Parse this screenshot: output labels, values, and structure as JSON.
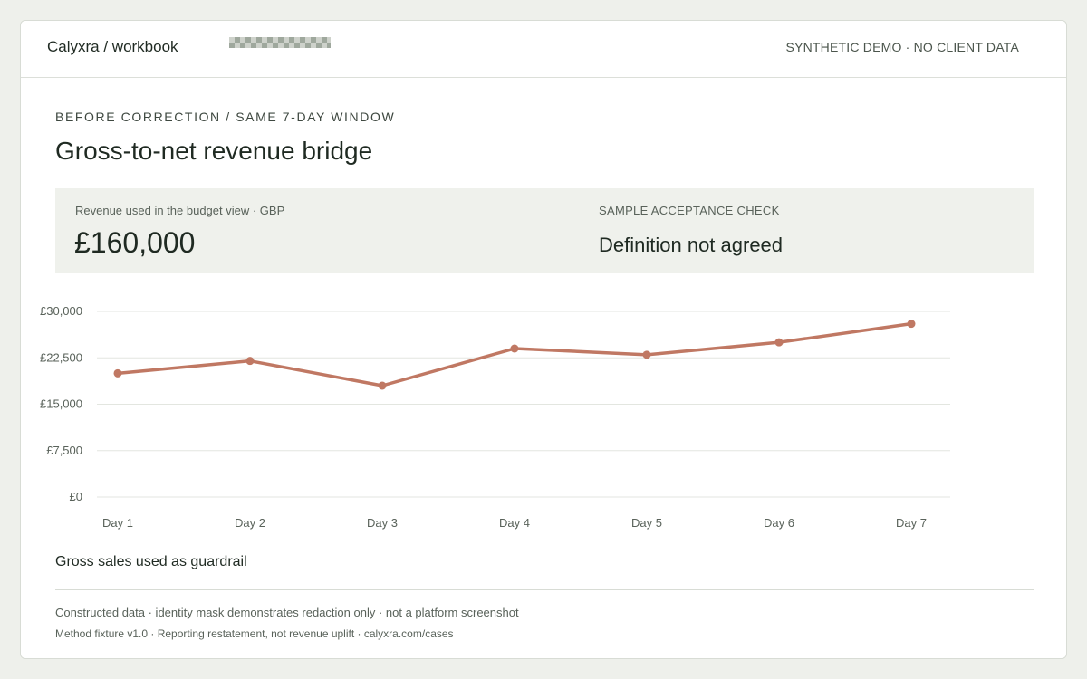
{
  "header": {
    "app_title": "Calyxra / workbook",
    "note": "SYNTHETIC DEMO · NO CLIENT DATA"
  },
  "eyebrow": "BEFORE CORRECTION / SAME 7-DAY WINDOW",
  "title": "Gross-to-net revenue bridge",
  "summary": {
    "label": "Revenue used in the budget view · GBP",
    "value": "£160,000",
    "check_label": "SAMPLE ACCEPTANCE CHECK",
    "check_value": "Definition not agreed"
  },
  "chart_data": {
    "type": "line",
    "categories": [
      "Day 1",
      "Day 2",
      "Day 3",
      "Day 4",
      "Day 5",
      "Day 6",
      "Day 7"
    ],
    "series": [
      {
        "values": [
          20000,
          22000,
          18000,
          24000,
          23000,
          25000,
          28000
        ],
        "color": "#c07863"
      }
    ],
    "yticks": [
      0,
      7500,
      15000,
      22500,
      30000
    ],
    "ytick_labels": [
      "£0",
      "£7,500",
      "£15,000",
      "£22,500",
      "£30,000"
    ],
    "ylim": [
      0,
      30000
    ],
    "grid": true
  },
  "chart_caption": "Gross sales used as guardrail",
  "footer": {
    "line1": "Constructed data · identity mask demonstrates redaction only · not a platform screenshot",
    "line2": "Method fixture v1.0 · Reporting restatement, not revenue uplift · calyxra.com/cases"
  }
}
